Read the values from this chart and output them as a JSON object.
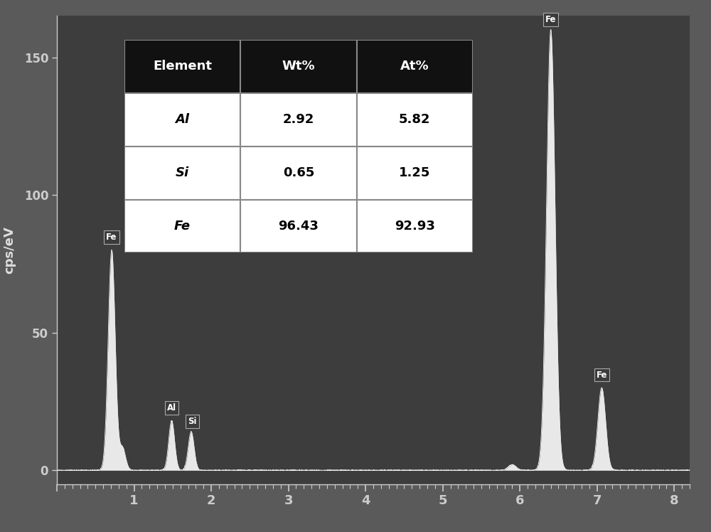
{
  "background_color": "#5a5a5a",
  "plot_bg_color": "#3d3d3d",
  "spine_color": "#cccccc",
  "tick_color": "#cccccc",
  "label_color": "#dddddd",
  "ylabel": "cps/eV",
  "yticks": [
    0,
    50,
    100,
    150
  ],
  "xlim": [
    0,
    8.2
  ],
  "ylim": [
    -5,
    165
  ],
  "spectrum_color": "#e8e8e8",
  "table_elements": [
    "Al",
    "Si",
    "Fe"
  ],
  "table_wt": [
    "2.92",
    "0.65",
    "96.43"
  ],
  "table_at": [
    "5.82",
    "1.25",
    "92.93"
  ],
  "table_header_bg": "#111111",
  "table_header_fg": "#ffffff",
  "table_cell_bg": "#ffffff",
  "table_cell_fg": "#000000",
  "table_border": "#888888",
  "col_labels": [
    "Element",
    "Wt%",
    "At%"
  ]
}
